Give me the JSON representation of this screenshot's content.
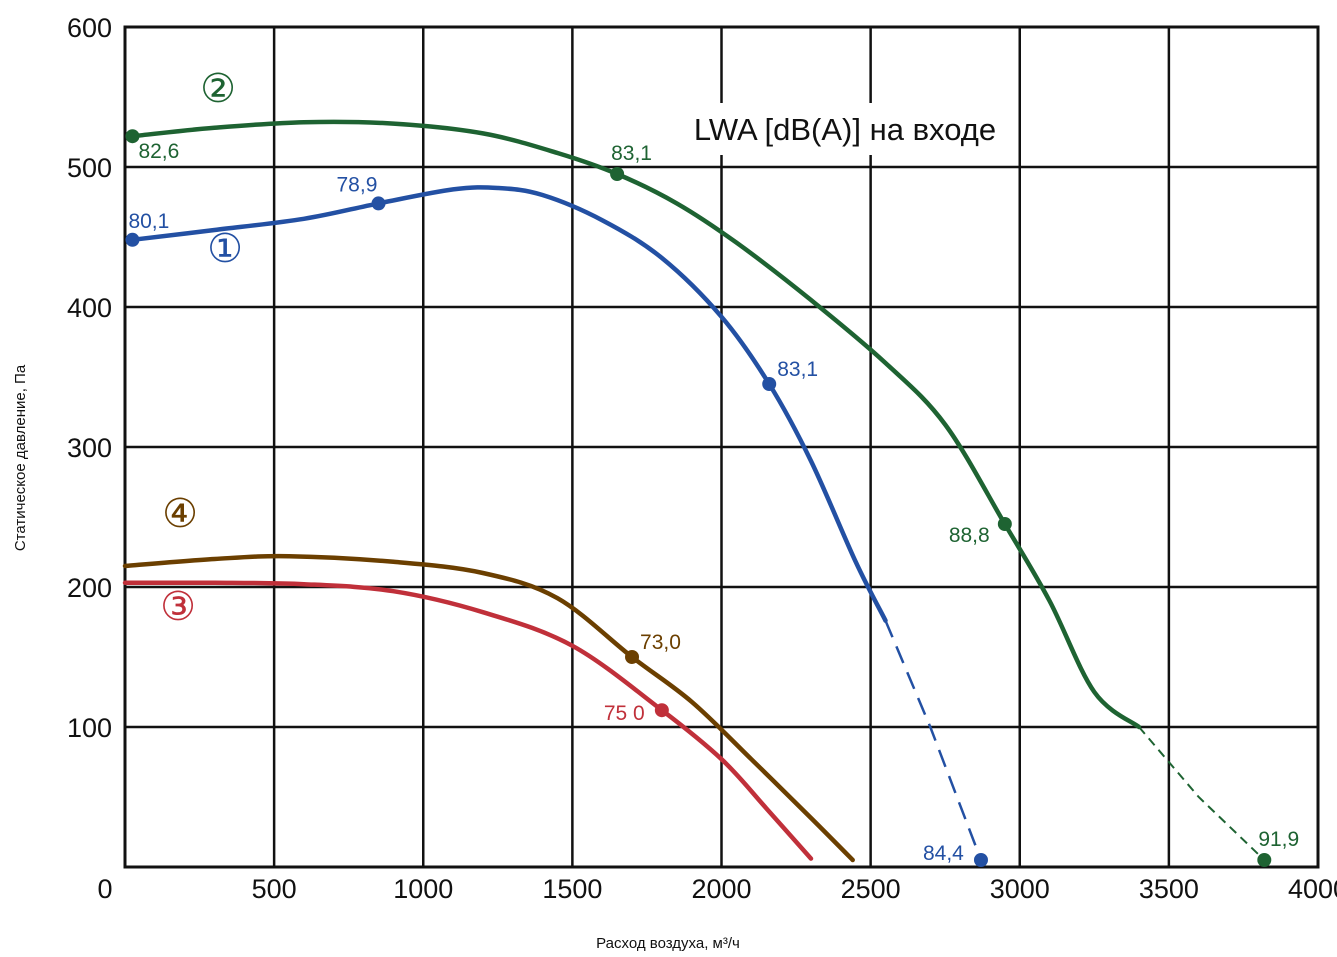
{
  "chart_data": {
    "type": "line",
    "title": "",
    "annotation": "LWA [dB(A)] на входе",
    "xlabel": "Расход воздуха, м³/ч",
    "ylabel": "Статическое давление, Па",
    "xlim": [
      0,
      4000
    ],
    "ylim": [
      0,
      600
    ],
    "xticks": [
      "0",
      "500",
      "1000",
      "1500",
      "2000",
      "2500",
      "3000",
      "3500",
      "4000"
    ],
    "yticks": [
      "100",
      "200",
      "300",
      "400",
      "500",
      "600"
    ],
    "grid": true,
    "series": [
      {
        "name": "①",
        "color": "#2350a3",
        "points": [
          [
            25,
            448
          ],
          [
            300,
            455
          ],
          [
            600,
            463
          ],
          [
            850,
            474
          ],
          [
            1100,
            484
          ],
          [
            1250,
            485
          ],
          [
            1400,
            480
          ],
          [
            1600,
            462
          ],
          [
            1800,
            435
          ],
          [
            2000,
            393
          ],
          [
            2160,
            345
          ],
          [
            2300,
            290
          ],
          [
            2450,
            218
          ],
          [
            2550,
            176
          ]
        ],
        "dashed": [
          [
            2550,
            176
          ],
          [
            2700,
            100
          ],
          [
            2870,
            5
          ]
        ],
        "markers": [
          {
            "x": 25,
            "y": 448,
            "label": "80,1"
          },
          {
            "x": 850,
            "y": 474,
            "label": "78,9"
          },
          {
            "x": 2160,
            "y": 345,
            "label": "83,1"
          },
          {
            "x": 2870,
            "y": 5,
            "label": "84,4"
          }
        ]
      },
      {
        "name": "②",
        "color": "#1e6332",
        "points": [
          [
            25,
            522
          ],
          [
            300,
            528
          ],
          [
            600,
            532
          ],
          [
            900,
            531
          ],
          [
            1200,
            524
          ],
          [
            1450,
            510
          ],
          [
            1650,
            495
          ],
          [
            1850,
            474
          ],
          [
            2050,
            446
          ],
          [
            2300,
            405
          ],
          [
            2550,
            360
          ],
          [
            2750,
            316
          ],
          [
            2950,
            245
          ],
          [
            3100,
            190
          ],
          [
            3250,
            125
          ],
          [
            3400,
            100
          ]
        ],
        "dashed": [
          [
            3400,
            100
          ],
          [
            3600,
            50
          ],
          [
            3820,
            5
          ]
        ],
        "markers": [
          {
            "x": 25,
            "y": 522,
            "label": "82,6"
          },
          {
            "x": 1650,
            "y": 495,
            "label": "83,1"
          },
          {
            "x": 2950,
            "y": 245,
            "label": "88,8"
          },
          {
            "x": 3820,
            "y": 5,
            "label": "91,9"
          }
        ]
      },
      {
        "name": "③",
        "color": "#c0303a",
        "points": [
          [
            0,
            203
          ],
          [
            300,
            203
          ],
          [
            600,
            202
          ],
          [
            900,
            197
          ],
          [
            1200,
            182
          ],
          [
            1500,
            158
          ],
          [
            1800,
            112
          ],
          [
            2000,
            77
          ],
          [
            2150,
            42
          ],
          [
            2300,
            6
          ]
        ],
        "markers": [
          {
            "x": 1800,
            "y": 112,
            "label": "75 0"
          }
        ]
      },
      {
        "name": "④",
        "color": "#6b3f00",
        "points": [
          [
            0,
            215
          ],
          [
            300,
            220
          ],
          [
            550,
            222
          ],
          [
            900,
            218
          ],
          [
            1200,
            210
          ],
          [
            1450,
            192
          ],
          [
            1700,
            150
          ],
          [
            1900,
            118
          ],
          [
            2100,
            77
          ],
          [
            2300,
            35
          ],
          [
            2440,
            5
          ]
        ],
        "markers": [
          {
            "x": 1700,
            "y": 150,
            "label": "73,0"
          }
        ]
      }
    ]
  }
}
